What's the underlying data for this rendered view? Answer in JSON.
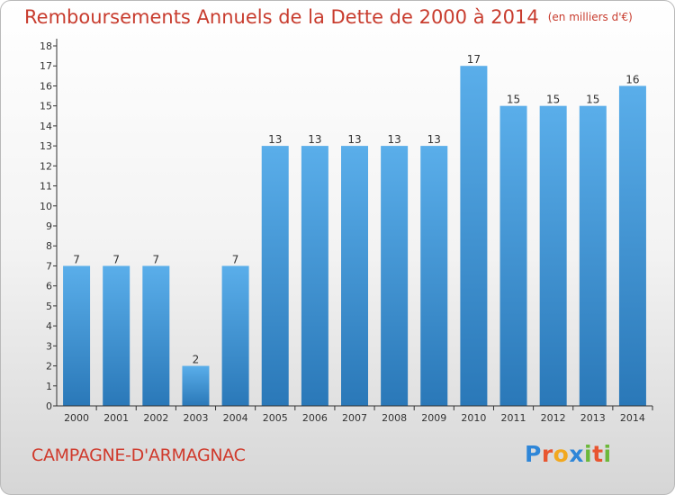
{
  "header": {
    "title": "Remboursements Annuels de la Dette de 2000 à 2014",
    "unit": "(en milliers d'€)"
  },
  "footer": {
    "commune": "CAMPAGNE-D'ARMAGNAC",
    "brand": "Proxiti",
    "brand_letters": [
      "P",
      "r",
      "o",
      "x",
      "i",
      "t",
      "i"
    ]
  },
  "colors": {
    "title": "#c83c2e",
    "bar_top": "#5aaeea",
    "bar_bottom": "#2a78b8",
    "axis": "#333333"
  },
  "chart_data": {
    "type": "bar",
    "title": "Remboursements Annuels de la Dette de 2000 à 2014",
    "xlabel": "",
    "ylabel": "",
    "categories": [
      "2000",
      "2001",
      "2002",
      "2003",
      "2004",
      "2005",
      "2006",
      "2007",
      "2008",
      "2009",
      "2010",
      "2011",
      "2012",
      "2013",
      "2014"
    ],
    "values": [
      7,
      7,
      7,
      2,
      7,
      13,
      13,
      13,
      13,
      13,
      17,
      15,
      15,
      15,
      16
    ],
    "value_labels": [
      "7",
      "7",
      "7",
      "2",
      "7",
      "13",
      "13",
      "13",
      "13",
      "13",
      "17",
      "15",
      "15",
      "15",
      "16"
    ],
    "ylim": [
      0,
      18
    ],
    "yticks": [
      "0",
      "1",
      "2",
      "3",
      "4",
      "5",
      "6",
      "7",
      "8",
      "9",
      "10",
      "11",
      "12",
      "13",
      "14",
      "15",
      "16",
      "17",
      "18"
    ],
    "grid": false,
    "legend": "none"
  }
}
